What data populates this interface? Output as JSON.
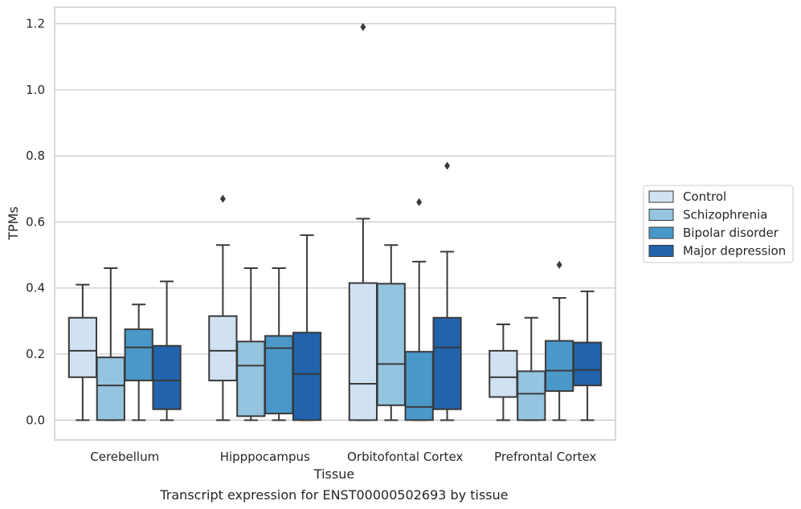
{
  "chart_data": {
    "type": "box",
    "caption": "Transcript expression for ENST00000502693 by tissue",
    "xlabel": "Tissue",
    "ylabel": "TPMs",
    "ylim": [
      -0.06,
      1.25
    ],
    "yticks": [
      0.0,
      0.2,
      0.4,
      0.6,
      0.8,
      1.0,
      1.2
    ],
    "ytick_labels": [
      "0.0",
      "0.2",
      "0.4",
      "0.6",
      "0.8",
      "1.0",
      "1.2"
    ],
    "grid": "horizontal",
    "legend_position": "right",
    "categories": [
      "Cerebellum",
      "Hipppocampus",
      "Orbitofontal Cortex",
      "Prefrontal Cortex"
    ],
    "series": [
      {
        "name": "Control",
        "color": "#d0e1f2",
        "boxes": [
          {
            "whislo": 0.0,
            "q1": 0.13,
            "med": 0.21,
            "q3": 0.31,
            "whishi": 0.41,
            "fliers": []
          },
          {
            "whislo": 0.0,
            "q1": 0.12,
            "med": 0.21,
            "q3": 0.315,
            "whishi": 0.53,
            "fliers": [
              0.67
            ]
          },
          {
            "whislo": 0.0,
            "q1": 0.0,
            "med": 0.11,
            "q3": 0.415,
            "whishi": 0.61,
            "fliers": [
              1.19
            ]
          },
          {
            "whislo": 0.0,
            "q1": 0.07,
            "med": 0.13,
            "q3": 0.21,
            "whishi": 0.29,
            "fliers": []
          }
        ]
      },
      {
        "name": "Schizophrenia",
        "color": "#94c4df",
        "boxes": [
          {
            "whislo": 0.0,
            "q1": 0.0,
            "med": 0.105,
            "q3": 0.19,
            "whishi": 0.46,
            "fliers": []
          },
          {
            "whislo": 0.0,
            "q1": 0.012,
            "med": 0.165,
            "q3": 0.238,
            "whishi": 0.46,
            "fliers": []
          },
          {
            "whislo": 0.0,
            "q1": 0.045,
            "med": 0.17,
            "q3": 0.413,
            "whishi": 0.53,
            "fliers": []
          },
          {
            "whislo": 0.0,
            "q1": 0.0,
            "med": 0.08,
            "q3": 0.148,
            "whishi": 0.31,
            "fliers": []
          }
        ]
      },
      {
        "name": "Bipolar disorder",
        "color": "#4a98c9",
        "boxes": [
          {
            "whislo": 0.0,
            "q1": 0.12,
            "med": 0.22,
            "q3": 0.275,
            "whishi": 0.35,
            "fliers": []
          },
          {
            "whislo": 0.0,
            "q1": 0.02,
            "med": 0.218,
            "q3": 0.255,
            "whishi": 0.46,
            "fliers": []
          },
          {
            "whislo": 0.0,
            "q1": 0.0,
            "med": 0.04,
            "q3": 0.207,
            "whishi": 0.48,
            "fliers": [
              0.66
            ]
          },
          {
            "whislo": 0.0,
            "q1": 0.088,
            "med": 0.15,
            "q3": 0.24,
            "whishi": 0.37,
            "fliers": [
              0.47
            ]
          }
        ]
      },
      {
        "name": "Major depression",
        "color": "#2164ab",
        "boxes": [
          {
            "whislo": 0.0,
            "q1": 0.033,
            "med": 0.12,
            "q3": 0.225,
            "whishi": 0.42,
            "fliers": []
          },
          {
            "whislo": 0.0,
            "q1": 0.0,
            "med": 0.14,
            "q3": 0.265,
            "whishi": 0.56,
            "fliers": []
          },
          {
            "whislo": 0.0,
            "q1": 0.033,
            "med": 0.22,
            "q3": 0.31,
            "whishi": 0.51,
            "fliers": [
              0.77
            ]
          },
          {
            "whislo": 0.0,
            "q1": 0.105,
            "med": 0.152,
            "q3": 0.235,
            "whishi": 0.39,
            "fliers": []
          }
        ]
      }
    ]
  }
}
